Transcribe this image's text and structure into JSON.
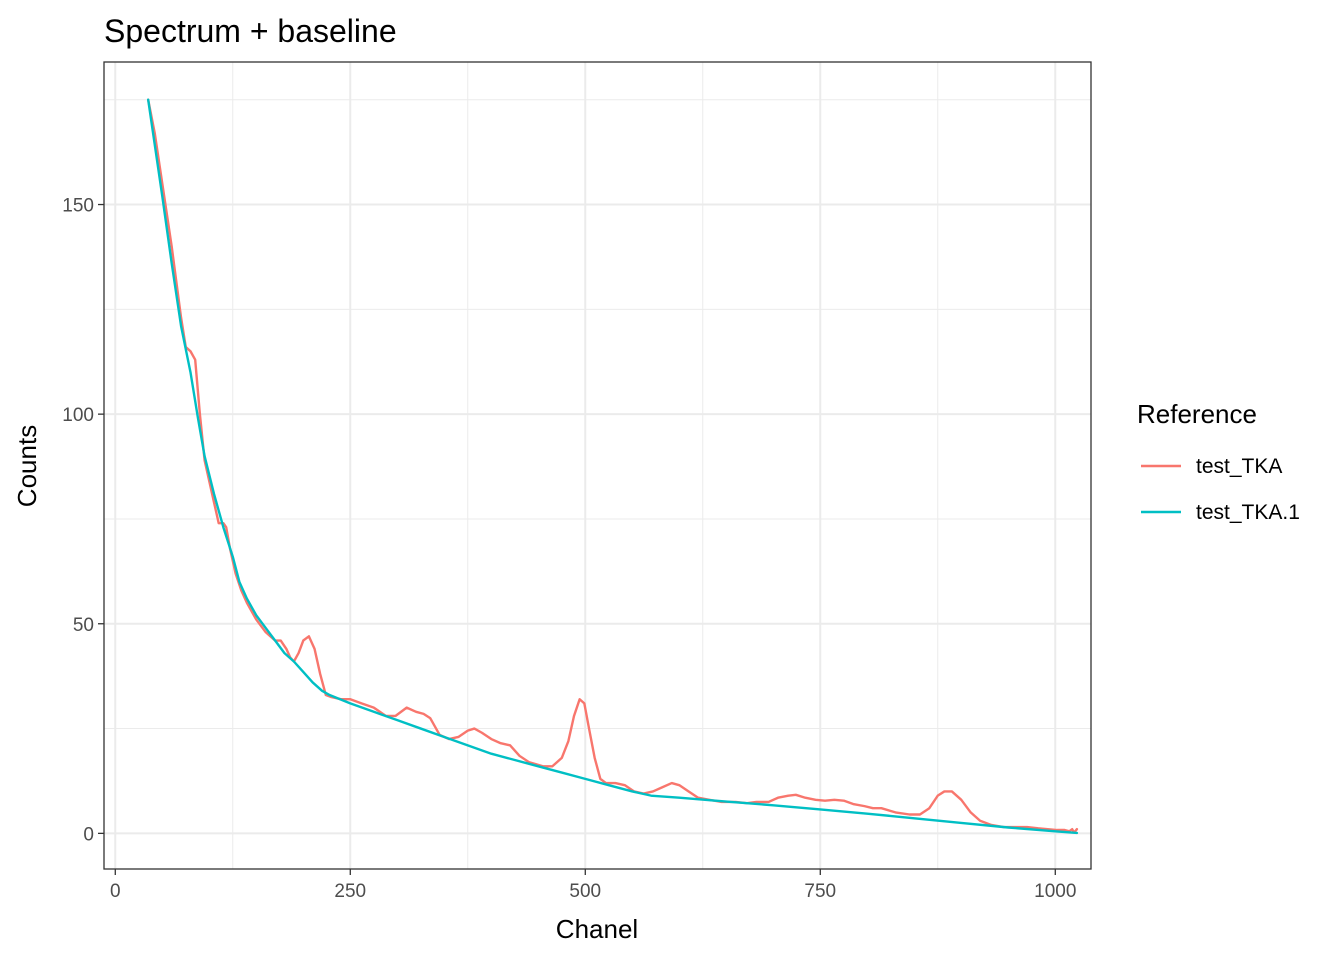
{
  "chart_data": {
    "type": "line",
    "title": "Spectrum + baseline",
    "xlabel": "Chanel",
    "ylabel": "Counts",
    "xlim": [
      -12,
      1038
    ],
    "ylim": [
      -8.5,
      184
    ],
    "x_ticks": [
      0,
      250,
      500,
      750,
      1000
    ],
    "y_ticks": [
      0,
      50,
      100,
      150
    ],
    "x_tick_labels": [
      "0",
      "250",
      "500",
      "750",
      "1000"
    ],
    "y_tick_labels": [
      "0",
      "50",
      "100",
      "150"
    ],
    "grid": true,
    "legend": {
      "title": "Reference",
      "position": "right",
      "entries": [
        "test_TKA",
        "test_TKA.1"
      ]
    },
    "series": [
      {
        "name": "test_TKA",
        "color": "#F8766D",
        "points": [
          [
            35,
            175
          ],
          [
            42,
            167
          ],
          [
            50,
            155
          ],
          [
            60,
            140
          ],
          [
            70,
            123
          ],
          [
            75,
            116
          ],
          [
            80,
            115
          ],
          [
            85,
            113
          ],
          [
            90,
            100
          ],
          [
            95,
            89
          ],
          [
            100,
            84
          ],
          [
            105,
            79
          ],
          [
            110,
            74
          ],
          [
            115,
            74
          ],
          [
            118,
            73
          ],
          [
            122,
            68
          ],
          [
            128,
            62
          ],
          [
            134,
            58
          ],
          [
            140,
            55
          ],
          [
            150,
            51
          ],
          [
            160,
            48
          ],
          [
            170,
            46
          ],
          [
            176,
            46
          ],
          [
            182,
            44
          ],
          [
            186,
            42
          ],
          [
            190,
            41
          ],
          [
            195,
            43
          ],
          [
            200,
            46
          ],
          [
            206,
            47
          ],
          [
            212,
            44
          ],
          [
            218,
            38
          ],
          [
            224,
            33
          ],
          [
            230,
            32.5
          ],
          [
            240,
            32
          ],
          [
            250,
            32
          ],
          [
            262,
            31
          ],
          [
            275,
            30
          ],
          [
            288,
            28
          ],
          [
            298,
            28
          ],
          [
            310,
            30
          ],
          [
            320,
            29
          ],
          [
            328,
            28.5
          ],
          [
            335,
            27.5
          ],
          [
            345,
            23.5
          ],
          [
            355,
            22.5
          ],
          [
            365,
            23
          ],
          [
            375,
            24.5
          ],
          [
            382,
            25
          ],
          [
            390,
            24
          ],
          [
            400,
            22.5
          ],
          [
            410,
            21.5
          ],
          [
            420,
            21
          ],
          [
            430,
            18.5
          ],
          [
            440,
            17
          ],
          [
            455,
            16
          ],
          [
            465,
            16
          ],
          [
            475,
            18
          ],
          [
            482,
            22
          ],
          [
            488,
            28
          ],
          [
            494,
            32
          ],
          [
            499,
            31
          ],
          [
            504,
            25
          ],
          [
            510,
            18
          ],
          [
            516,
            13
          ],
          [
            522,
            12
          ],
          [
            532,
            12
          ],
          [
            542,
            11.5
          ],
          [
            552,
            10
          ],
          [
            562,
            9.5
          ],
          [
            572,
            10
          ],
          [
            582,
            11
          ],
          [
            592,
            12
          ],
          [
            600,
            11.5
          ],
          [
            610,
            10
          ],
          [
            620,
            8.5
          ],
          [
            632,
            8
          ],
          [
            645,
            7.5
          ],
          [
            660,
            7.5
          ],
          [
            672,
            7.2
          ],
          [
            682,
            7.5
          ],
          [
            695,
            7.5
          ],
          [
            705,
            8.5
          ],
          [
            716,
            9
          ],
          [
            724,
            9.2
          ],
          [
            734,
            8.5
          ],
          [
            745,
            8
          ],
          [
            755,
            7.8
          ],
          [
            765,
            8
          ],
          [
            775,
            7.8
          ],
          [
            785,
            7
          ],
          [
            797,
            6.5
          ],
          [
            806,
            6
          ],
          [
            815,
            6
          ],
          [
            830,
            5
          ],
          [
            845,
            4.5
          ],
          [
            856,
            4.5
          ],
          [
            866,
            6
          ],
          [
            875,
            9
          ],
          [
            882,
            10
          ],
          [
            890,
            10
          ],
          [
            900,
            8
          ],
          [
            910,
            5
          ],
          [
            920,
            3
          ],
          [
            932,
            2
          ],
          [
            945,
            1.5
          ],
          [
            958,
            1.5
          ],
          [
            970,
            1.5
          ],
          [
            982,
            1.2
          ],
          [
            992,
            1
          ],
          [
            1002,
            0.8
          ],
          [
            1010,
            0.8
          ],
          [
            1015,
            0.5
          ],
          [
            1018,
            1
          ],
          [
            1020,
            0.2
          ],
          [
            1023,
            1
          ]
        ]
      },
      {
        "name": "test_TKA.1",
        "color": "#00BFC4",
        "points": [
          [
            35,
            175
          ],
          [
            50,
            152
          ],
          [
            60,
            136
          ],
          [
            70,
            121
          ],
          [
            80,
            110
          ],
          [
            88,
            99
          ],
          [
            95,
            90
          ],
          [
            105,
            81
          ],
          [
            115,
            73
          ],
          [
            125,
            66
          ],
          [
            132,
            60
          ],
          [
            140,
            56
          ],
          [
            150,
            52
          ],
          [
            160,
            49
          ],
          [
            170,
            46
          ],
          [
            180,
            43
          ],
          [
            190,
            41
          ],
          [
            200,
            38.5
          ],
          [
            210,
            36
          ],
          [
            220,
            34
          ],
          [
            228,
            33
          ],
          [
            250,
            31
          ],
          [
            275,
            29
          ],
          [
            300,
            27
          ],
          [
            325,
            25
          ],
          [
            350,
            23
          ],
          [
            375,
            21
          ],
          [
            400,
            19
          ],
          [
            425,
            17.5
          ],
          [
            450,
            16
          ],
          [
            475,
            14.5
          ],
          [
            500,
            13
          ],
          [
            525,
            11.5
          ],
          [
            550,
            10
          ],
          [
            570,
            9
          ],
          [
            600,
            8.5
          ],
          [
            650,
            7.6
          ],
          [
            700,
            6.7
          ],
          [
            750,
            5.7
          ],
          [
            800,
            4.7
          ],
          [
            850,
            3.6
          ],
          [
            900,
            2.5
          ],
          [
            950,
            1.4
          ],
          [
            1000,
            0.5
          ],
          [
            1023,
            0.1
          ]
        ]
      }
    ]
  }
}
